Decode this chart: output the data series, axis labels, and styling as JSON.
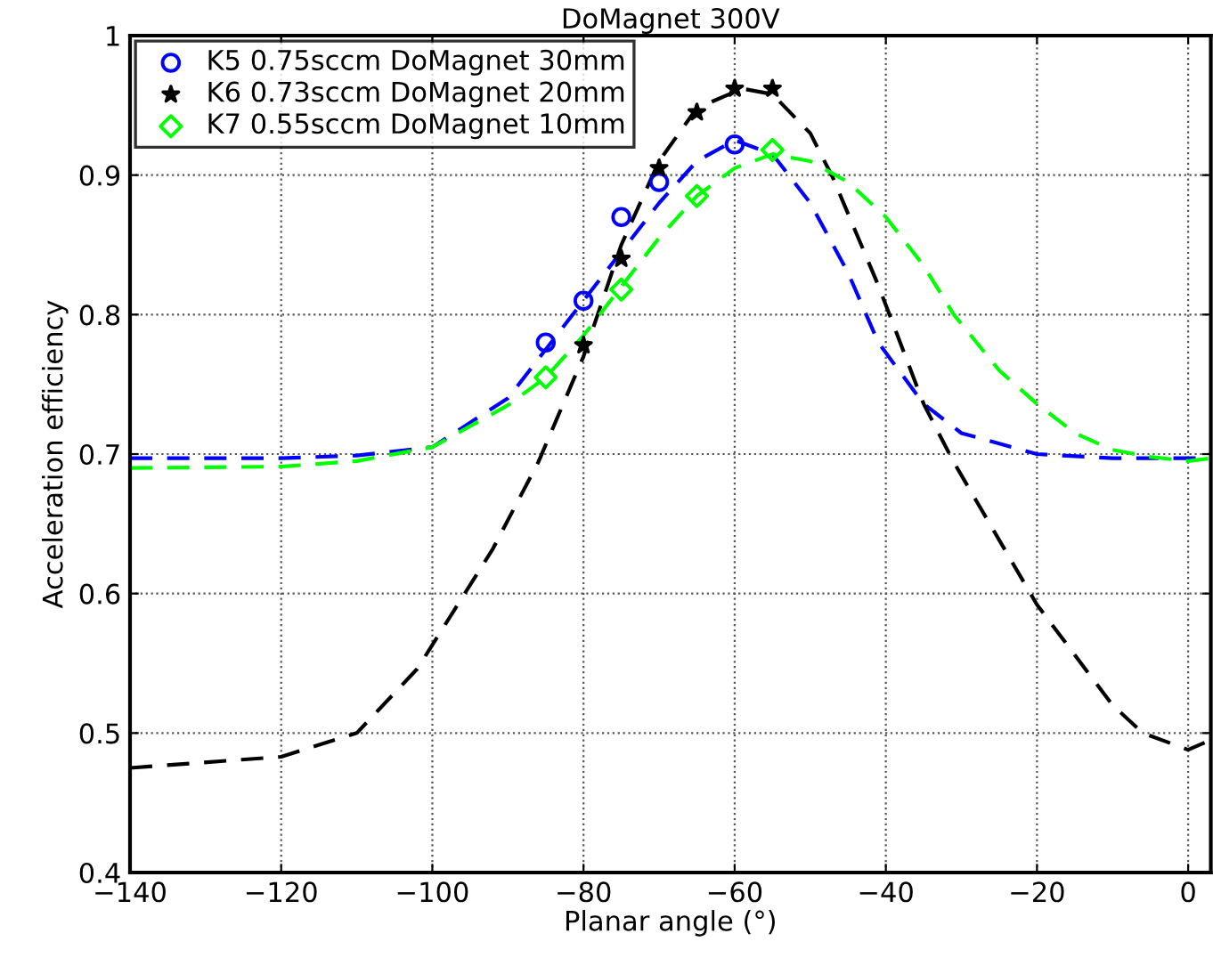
{
  "chart_data": {
    "type": "scatter",
    "title": "DoMagnet 300V",
    "xlabel": "Planar angle (°)",
    "ylabel": "Acceleration efficiency",
    "xlim": [
      -140,
      3
    ],
    "ylim": [
      0.4,
      1
    ],
    "xticks": [
      {
        "value": -140,
        "label": "−140"
      },
      {
        "value": -120,
        "label": "−120"
      },
      {
        "value": -100,
        "label": "−100"
      },
      {
        "value": -80,
        "label": "−80"
      },
      {
        "value": -60,
        "label": "−60"
      },
      {
        "value": -40,
        "label": "−40"
      },
      {
        "value": -20,
        "label": "−20"
      },
      0
    ],
    "yticks": [
      0.4,
      0.5,
      0.6,
      0.7,
      0.8,
      0.9,
      1
    ],
    "grid": true,
    "legend": "top left",
    "series": [
      {
        "name": "K5 0.75sccm DoMagnet 30mm",
        "color": "#0000ff",
        "marker": "circle",
        "x": [
          -85,
          -80,
          -75,
          -70,
          -60
        ],
        "values": [
          0.78,
          0.81,
          0.87,
          0.895,
          0.922
        ]
      },
      {
        "name": "K6 0.73sccm DoMagnet 20mm",
        "color": "#000000",
        "marker": "star",
        "x": [
          -80,
          -75,
          -70,
          -65,
          -60,
          -55
        ],
        "values": [
          0.778,
          0.84,
          0.905,
          0.945,
          0.962,
          0.962
        ]
      },
      {
        "name": "K7 0.55sccm DoMagnet 10mm",
        "color": "#00ff00",
        "marker": "diamond",
        "x": [
          -85,
          -75,
          -65,
          -55
        ],
        "values": [
          0.755,
          0.818,
          0.885,
          0.918
        ]
      },
      {
        "type": "line",
        "line_style": "dashed",
        "color": "#0000ff",
        "x": [
          -140,
          -120,
          -110,
          -100,
          -90,
          -80,
          -70,
          -65,
          -60,
          -55,
          -50,
          -45,
          -41,
          -35,
          -30,
          -20,
          -10,
          3
        ],
        "values": [
          0.697,
          0.697,
          0.699,
          0.705,
          0.74,
          0.81,
          0.88,
          0.91,
          0.925,
          0.915,
          0.88,
          0.83,
          0.78,
          0.736,
          0.715,
          0.7,
          0.697,
          0.697
        ]
      },
      {
        "type": "line",
        "line_style": "dashed",
        "color": "#000000",
        "x": [
          -140,
          -120,
          -110,
          -102,
          -92,
          -86,
          -80,
          -75,
          -70,
          -65,
          -59,
          -55,
          -50,
          -47,
          -41,
          -35,
          -31,
          -20,
          -10,
          -6,
          0,
          3
        ],
        "values": [
          0.475,
          0.483,
          0.5,
          0.546,
          0.632,
          0.694,
          0.77,
          0.85,
          0.91,
          0.948,
          0.962,
          0.958,
          0.93,
          0.898,
          0.821,
          0.736,
          0.694,
          0.592,
          0.52,
          0.5,
          0.488,
          0.495
        ]
      },
      {
        "type": "line",
        "line_style": "dashed",
        "color": "#00ff00",
        "x": [
          -140,
          -120,
          -110,
          -100,
          -90,
          -85,
          -80,
          -75,
          -70,
          -65,
          -60,
          -55,
          -50,
          -45,
          -40,
          -35,
          -31,
          -25,
          -20,
          -15,
          -10,
          -5,
          0,
          3
        ],
        "values": [
          0.69,
          0.691,
          0.695,
          0.705,
          0.735,
          0.755,
          0.785,
          0.82,
          0.855,
          0.885,
          0.905,
          0.915,
          0.91,
          0.895,
          0.87,
          0.835,
          0.8,
          0.76,
          0.736,
          0.715,
          0.703,
          0.698,
          0.695,
          0.697
        ]
      }
    ]
  }
}
